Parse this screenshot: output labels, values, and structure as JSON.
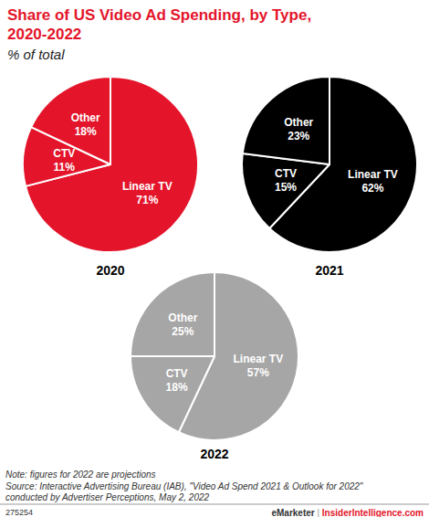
{
  "title": "Share of US Video Ad Spending, by Type,\n2020-2022",
  "subtitle": "% of total",
  "note": "Note: figures for 2022 are projections",
  "source": "Source: Interactive Advertising Bureau (IAB), \"Video Ad Spend 2021 & Outlook for 2022\"\nconducted by Advertiser Perceptions, May 2, 2022",
  "chart_id": "275254",
  "footer": [
    "eMarketer",
    "|",
    "InsiderIntelligence.com"
  ],
  "chart_data": [
    {
      "type": "pie",
      "title": "2020",
      "categories": [
        "Linear TV",
        "CTV",
        "Other"
      ],
      "values": [
        71,
        11,
        18
      ],
      "value_labels": [
        "71%",
        "11%",
        "18%"
      ],
      "color": "#e4152b",
      "data_labels": true
    },
    {
      "type": "pie",
      "title": "2021",
      "categories": [
        "Linear TV",
        "CTV",
        "Other"
      ],
      "values": [
        62,
        15,
        23
      ],
      "value_labels": [
        "62%",
        "15%",
        "23%"
      ],
      "color": "#000000",
      "data_labels": true
    },
    {
      "type": "pie",
      "title": "2022",
      "categories": [
        "Linear TV",
        "CTV",
        "Other"
      ],
      "values": [
        57,
        18,
        25
      ],
      "value_labels": [
        "57%",
        "18%",
        "25%"
      ],
      "color": "#a6a6a6",
      "data_labels": true
    }
  ]
}
